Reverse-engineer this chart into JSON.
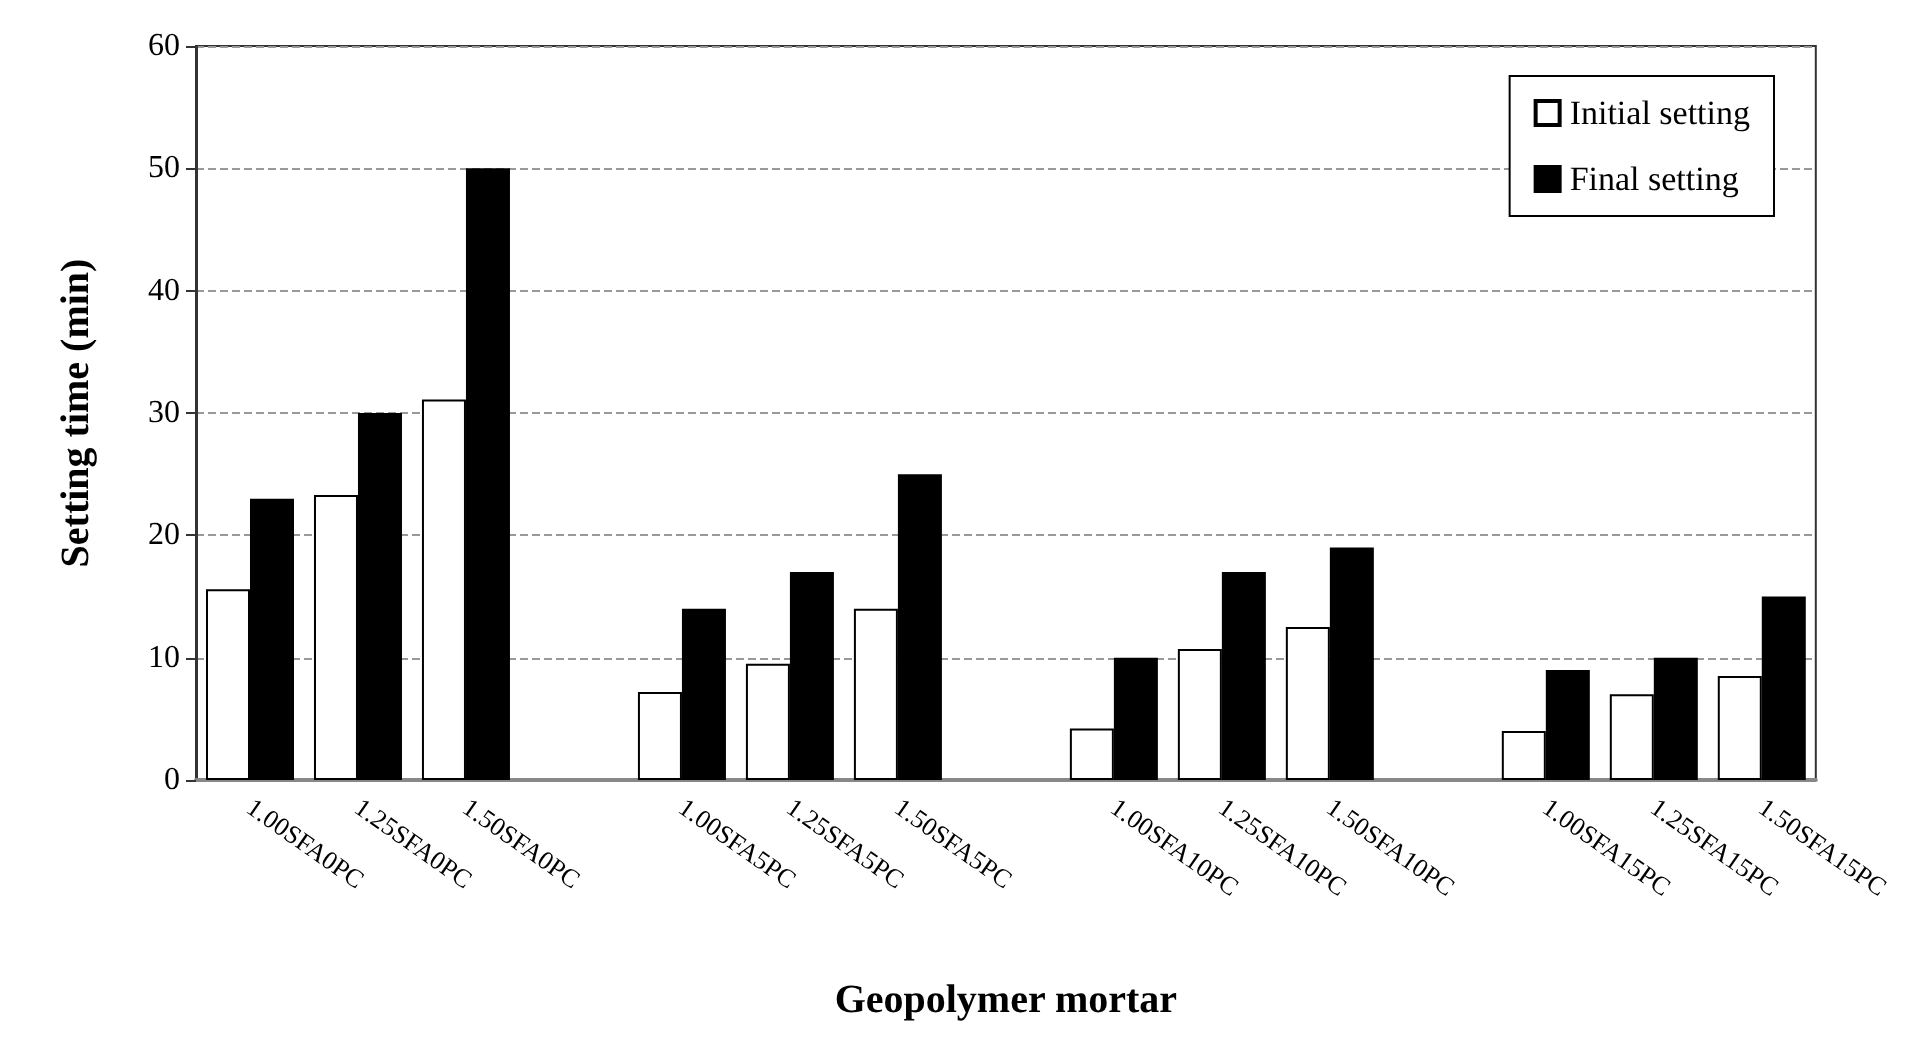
{
  "chart_data": {
    "type": "bar",
    "xlabel": "Geopolymer mortar",
    "ylabel": "Setting time (min)",
    "categories": [
      "1.00SFA0PC",
      "1.25SFA0PC",
      "1.50SFA0PC",
      null,
      "1.00SFA5PC",
      "1.25SFA5PC",
      "1.50SFA5PC",
      null,
      "1.00SFA10PC",
      "1.25SFA10PC",
      "1.50SFA10PC",
      null,
      "1.00SFA15PC",
      "1.25SFA15PC",
      "1.50SFA15PC"
    ],
    "series": [
      {
        "name": "Initial setting",
        "color": "#ffffff",
        "values": [
          15.6,
          23.3,
          31.1,
          null,
          7.2,
          9.5,
          14.0,
          null,
          4.2,
          10.7,
          12.5,
          null,
          4.0,
          7.0,
          8.5
        ]
      },
      {
        "name": "Final setting",
        "color": "#000000",
        "values": [
          23,
          30,
          50,
          null,
          14,
          17,
          25,
          null,
          10,
          17,
          19,
          null,
          9,
          10,
          15
        ]
      }
    ],
    "ylim": [
      0,
      60
    ],
    "yticks": [
      0,
      10,
      20,
      30,
      40,
      50,
      60
    ],
    "grid": "y",
    "legend": "top right"
  }
}
